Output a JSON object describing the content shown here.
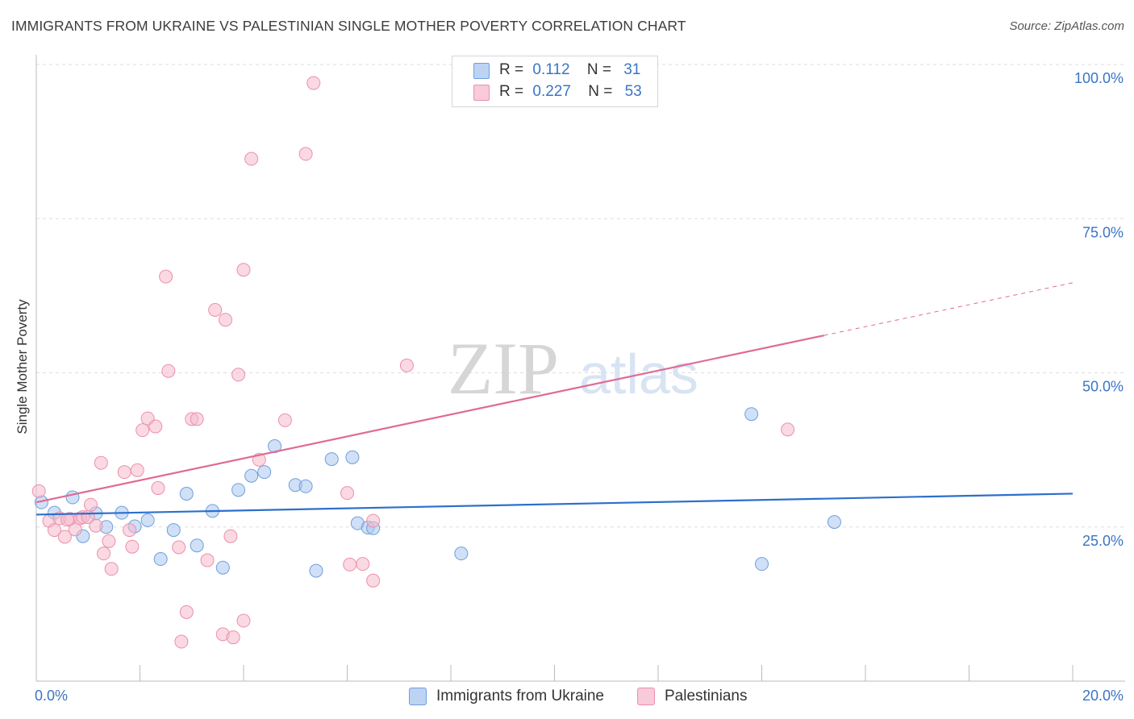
{
  "header": {
    "title": "IMMIGRANTS FROM UKRAINE VS PALESTINIAN SINGLE MOTHER POVERTY CORRELATION CHART",
    "source": "Source: ZipAtlas.com"
  },
  "watermark": {
    "part1": "ZIP",
    "part2": "atlas"
  },
  "legend_stats": [
    {
      "r_label": "R =",
      "r_value": "0.112",
      "n_label": "N =",
      "n_value": "31"
    },
    {
      "r_label": "R =",
      "r_value": "0.227",
      "n_label": "N =",
      "n_value": "53"
    }
  ],
  "colors": {
    "ukraine_fill": "#a9c6ef",
    "ukraine_stroke": "#6f9fdc",
    "ukraine_line": "#2c6fcc",
    "palestinian_fill": "#f6b9cc",
    "palestinian_stroke": "#ec8fac",
    "palestinian_line": "#e06a95",
    "tick_label": "#3a75c4",
    "grid": "#dddddd"
  },
  "chart_data": {
    "type": "scatter",
    "title": "IMMIGRANTS FROM UKRAINE VS PALESTINIAN SINGLE MOTHER POVERTY CORRELATION CHART",
    "xlabel": "",
    "ylabel": "Single Mother Poverty",
    "xlim": [
      0,
      20
    ],
    "ylim": [
      0,
      100
    ],
    "x_tick_labels": [
      "0.0%",
      "20.0%"
    ],
    "y_tick_labels": [
      "25.0%",
      "50.0%",
      "75.0%",
      "100.0%"
    ],
    "y_tick_values": [
      25,
      50,
      75,
      100
    ],
    "grid": true,
    "legend_position": "bottom",
    "series": [
      {
        "name": "Immigrants from Ukraine",
        "r": 0.112,
        "n": 31,
        "trend": {
          "x": [
            0,
            20
          ],
          "y": [
            27.0,
            30.4
          ],
          "dashed_from": null
        },
        "points": [
          [
            0.1,
            29.0
          ],
          [
            0.35,
            27.3
          ],
          [
            0.7,
            29.8
          ],
          [
            0.9,
            23.5
          ],
          [
            1.15,
            27.2
          ],
          [
            1.35,
            25.0
          ],
          [
            1.65,
            27.3
          ],
          [
            1.9,
            25.1
          ],
          [
            2.15,
            26.1
          ],
          [
            2.4,
            19.8
          ],
          [
            2.65,
            24.5
          ],
          [
            2.9,
            30.4
          ],
          [
            3.1,
            22.0
          ],
          [
            3.4,
            27.6
          ],
          [
            3.6,
            18.4
          ],
          [
            3.9,
            31.0
          ],
          [
            4.15,
            33.3
          ],
          [
            4.4,
            33.9
          ],
          [
            4.6,
            38.1
          ],
          [
            5.0,
            31.8
          ],
          [
            5.2,
            31.6
          ],
          [
            5.4,
            17.9
          ],
          [
            5.7,
            36.0
          ],
          [
            6.2,
            25.6
          ],
          [
            6.1,
            36.3
          ],
          [
            6.4,
            24.9
          ],
          [
            6.5,
            24.8
          ],
          [
            8.2,
            20.7
          ],
          [
            13.8,
            43.3
          ],
          [
            14.0,
            19.0
          ],
          [
            15.4,
            25.8
          ]
        ]
      },
      {
        "name": "Palestinians",
        "r": 0.227,
        "n": 53,
        "trend": {
          "x": [
            0,
            20
          ],
          "y": [
            29.0,
            64.6
          ],
          "dashed_from": 15.2
        },
        "points": [
          [
            0.05,
            30.8
          ],
          [
            0.25,
            26.0
          ],
          [
            0.35,
            24.5
          ],
          [
            0.45,
            26.4
          ],
          [
            0.55,
            23.4
          ],
          [
            0.65,
            26.3
          ],
          [
            0.75,
            24.6
          ],
          [
            0.85,
            26.4
          ],
          [
            0.9,
            26.6
          ],
          [
            1.0,
            26.6
          ],
          [
            1.05,
            28.6
          ],
          [
            1.15,
            25.2
          ],
          [
            1.25,
            35.4
          ],
          [
            1.3,
            20.7
          ],
          [
            1.4,
            22.7
          ],
          [
            1.45,
            18.2
          ],
          [
            1.7,
            33.9
          ],
          [
            1.8,
            24.5
          ],
          [
            1.85,
            21.8
          ],
          [
            1.95,
            34.2
          ],
          [
            2.05,
            40.7
          ],
          [
            2.15,
            42.6
          ],
          [
            2.3,
            41.3
          ],
          [
            2.35,
            31.3
          ],
          [
            2.5,
            65.6
          ],
          [
            2.55,
            50.3
          ],
          [
            2.75,
            21.7
          ],
          [
            2.8,
            6.4
          ],
          [
            2.9,
            11.2
          ],
          [
            3.0,
            42.5
          ],
          [
            3.1,
            42.5
          ],
          [
            3.3,
            19.6
          ],
          [
            3.45,
            60.2
          ],
          [
            3.6,
            7.6
          ],
          [
            3.65,
            58.6
          ],
          [
            3.75,
            23.5
          ],
          [
            3.8,
            7.1
          ],
          [
            3.9,
            49.7
          ],
          [
            4.0,
            9.8
          ],
          [
            4.0,
            66.7
          ],
          [
            4.15,
            84.7
          ],
          [
            4.3,
            35.9
          ],
          [
            4.8,
            42.3
          ],
          [
            5.2,
            85.5
          ],
          [
            5.35,
            97.0
          ],
          [
            6.0,
            30.5
          ],
          [
            6.05,
            18.9
          ],
          [
            6.3,
            19.0
          ],
          [
            6.5,
            16.3
          ],
          [
            6.5,
            26.0
          ],
          [
            7.15,
            51.2
          ],
          [
            14.5,
            40.8
          ],
          [
            0.6,
            26.2
          ]
        ]
      }
    ]
  }
}
